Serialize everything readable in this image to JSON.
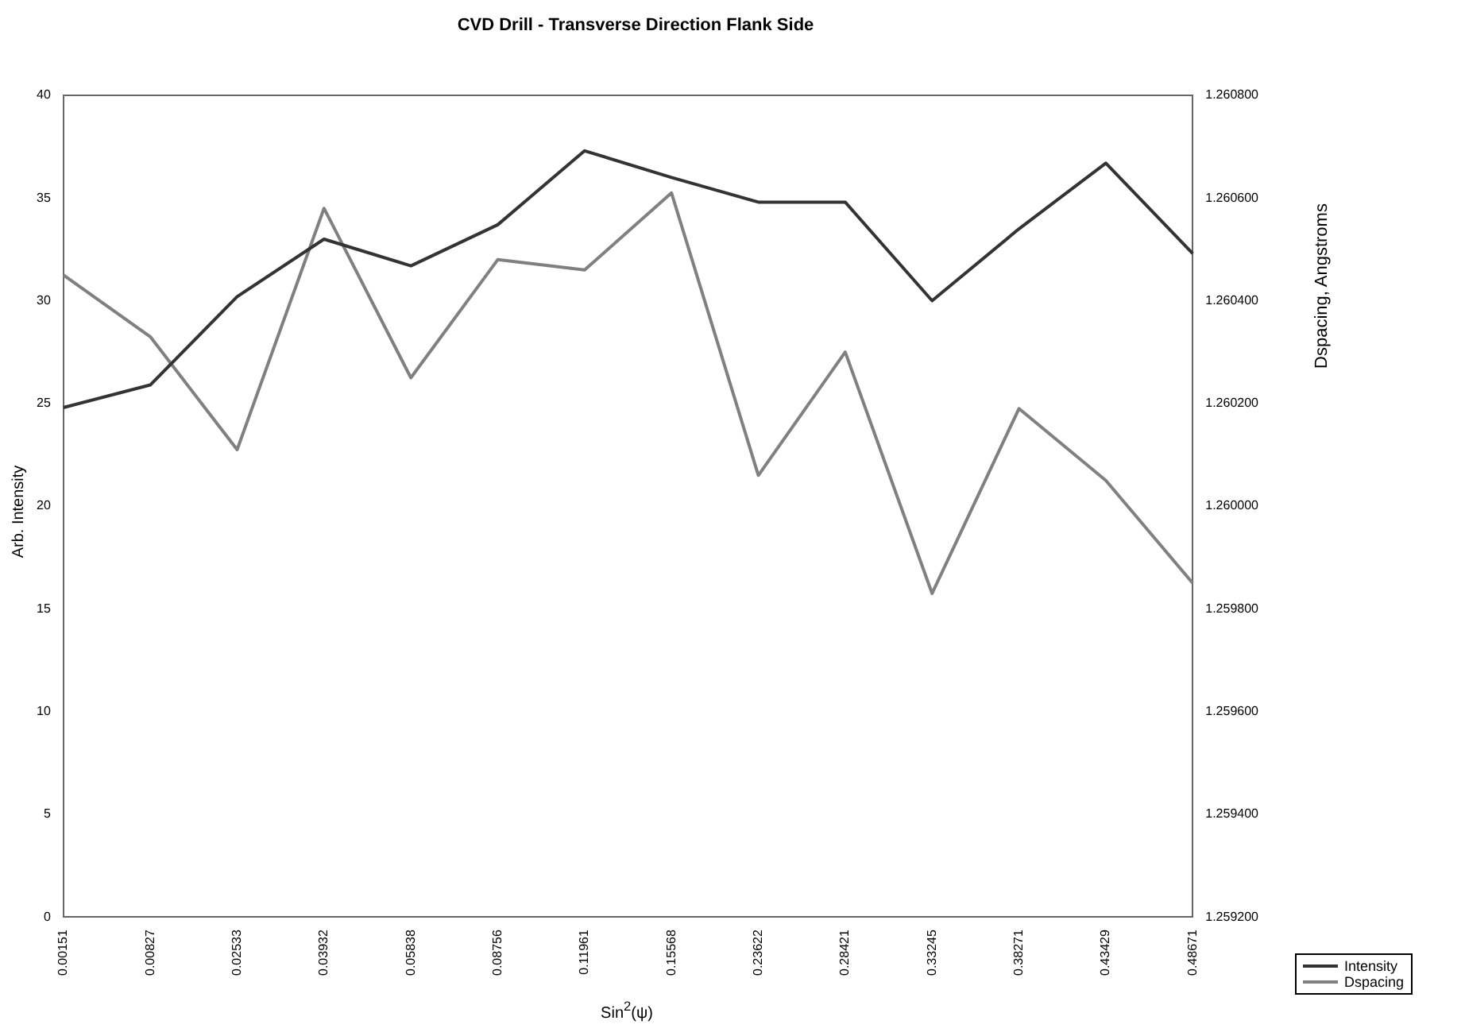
{
  "chart_data": {
    "type": "line",
    "title": "CVD Drill - Transverse Direction Flank Side",
    "xlabel": "Sin$^{2}$(ψ)",
    "ylabel": "Arb. Intensity",
    "y2label": "Dspacing, Angstroms",
    "categories": [
      "0.00151",
      "0.00827",
      "0.02533",
      "0.03932",
      "0.05838",
      "0.08756",
      "0.11961",
      "0.15568",
      "0.23622",
      "0.28421",
      "0.33245",
      "0.38271",
      "0.43429",
      "0.48671"
    ],
    "series": [
      {
        "name": "Intensity",
        "color": "#333333",
        "values": [
          24.8,
          25.9,
          30.2,
          33.0,
          31.7,
          33.7,
          37.3,
          36.0,
          34.8,
          34.8,
          30.0,
          33.5,
          36.7,
          32.3
        ]
      },
      {
        "name": "Dspacing",
        "color": "#808080",
        "axis": "y2",
        "values": [
          1.26045,
          1.26033,
          1.26011,
          1.26058,
          1.26025,
          1.26048,
          1.26046,
          1.26061,
          1.26006,
          1.2603,
          1.25983,
          1.26019,
          1.26005,
          1.25985
        ]
      }
    ],
    "ylim": [
      0,
      40
    ],
    "yticks": [
      0,
      5,
      10,
      15,
      20,
      25,
      30,
      35,
      40
    ],
    "y2lim": [
      1.2592,
      1.2608
    ],
    "y2ticks": [
      {
        "value": 1.2592,
        "label": "1.259200"
      },
      {
        "value": 1.2594,
        "label": "1.259400"
      },
      {
        "value": 1.2596,
        "label": "1.259600"
      },
      {
        "value": 1.2598,
        "label": "1.259800"
      },
      {
        "value": 1.26,
        "label": "1.260000"
      },
      {
        "value": 1.2602,
        "label": "1.260200"
      },
      {
        "value": 1.2604,
        "label": "1.260400"
      },
      {
        "value": 1.2606,
        "label": "1.260600"
      },
      {
        "value": 1.2608,
        "label": "1.260800"
      }
    ],
    "grid": false,
    "legend": "bottom right",
    "marker": "none",
    "line_style": "solid"
  }
}
